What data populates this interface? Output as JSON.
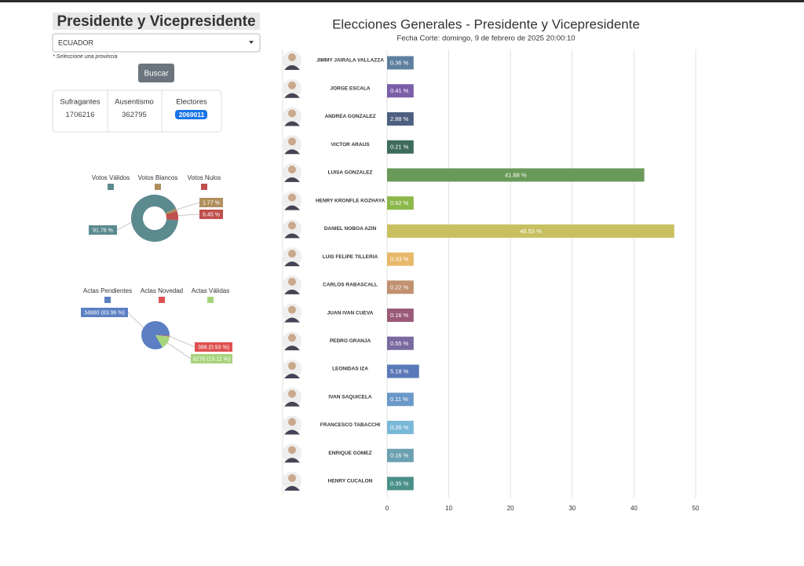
{
  "header": {
    "title": "Presidente y Vicepresidente",
    "select": "ECUADOR",
    "note": "* Seleccione una provincia",
    "button": "Buscar"
  },
  "stats": {
    "labels": [
      "Sufragantes",
      "Ausentismo",
      "Electores"
    ],
    "values": [
      1706216,
      362795,
      2069011
    ]
  },
  "chart_data": [
    {
      "type": "donut",
      "categories": [
        "Votos Válidos",
        "Votos Blancos",
        "Votos Nulos"
      ],
      "values": [
        91.78,
        1.77,
        6.45
      ],
      "value_labels": [
        "91.78 %",
        "1.77 %",
        "6.45 %"
      ],
      "colors": [
        "#5b8a8f",
        "#b08f5e",
        "#c0504d"
      ]
    },
    {
      "type": "pie",
      "categories": [
        "Actas Pendientes",
        "Actas Novedad",
        "Actas Válidas"
      ],
      "values": [
        34880,
        388,
        6276
      ],
      "value_labels": [
        "34880 (83.96 %)",
        "388 (0.93 %)",
        "6276 (15.11 %)"
      ],
      "colors": [
        "#5b7fc2",
        "#e05050",
        "#a6d47c"
      ]
    },
    {
      "type": "hbar",
      "title": "Elecciones Generales - Presidente y Vicepresidente",
      "subtitle": "Fecha Corte: domingo, 9 de febrero de 2025 20:00:10",
      "categories": [
        "JIMMY JAIRALA VALLAZZA",
        "JORGE ESCALA",
        "ANDREA GONZALEZ",
        "VICTOR ARAUS",
        "LUISA GONZALEZ",
        "HENRY KRONFLE KOZHAYA",
        "DANIEL NOBOA AZIN",
        "LUIS FELIPE TILLERIA",
        "CARLOS RABASCALL",
        "JUAN IVAN CUEVA",
        "PEDRO GRANJA",
        "LEONIDAS IZA",
        "IVAN SAQUICELA",
        "FRANCESCO TABACCHI",
        "ENRIQUE GOMEZ",
        "HENRY CUCALON"
      ],
      "values": [
        0.36,
        0.41,
        2.88,
        0.21,
        41.68,
        0.62,
        46.53,
        0.33,
        0.22,
        0.16,
        0.55,
        5.18,
        0.11,
        0.26,
        0.16,
        0.35
      ],
      "value_labels": [
        "0.36 %",
        "0.41 %",
        "2.88 %",
        "0.21 %",
        "41.68 %",
        "0.62 %",
        "46.53 %",
        "0.33 %",
        "0.22 %",
        "0.16 %",
        "0.55 %",
        "5.18 %",
        "0.11 %",
        "0.26 %",
        "0.16 %",
        "0.35 %"
      ],
      "colors": [
        "#5f7f9e",
        "#7a5ea8",
        "#4e6080",
        "#3d6b5c",
        "#6a9a5a",
        "#8ab84a",
        "#c8c060",
        "#e8b86a",
        "#c09070",
        "#9a5a78",
        "#7a6aa0",
        "#5a78b8",
        "#6a98c8",
        "#7ab8d8",
        "#6aa0b0",
        "#4a9088"
      ],
      "xlim": [
        0,
        50
      ],
      "xticks": [
        0,
        10,
        20,
        30,
        40,
        50
      ],
      "grid": true
    }
  ]
}
